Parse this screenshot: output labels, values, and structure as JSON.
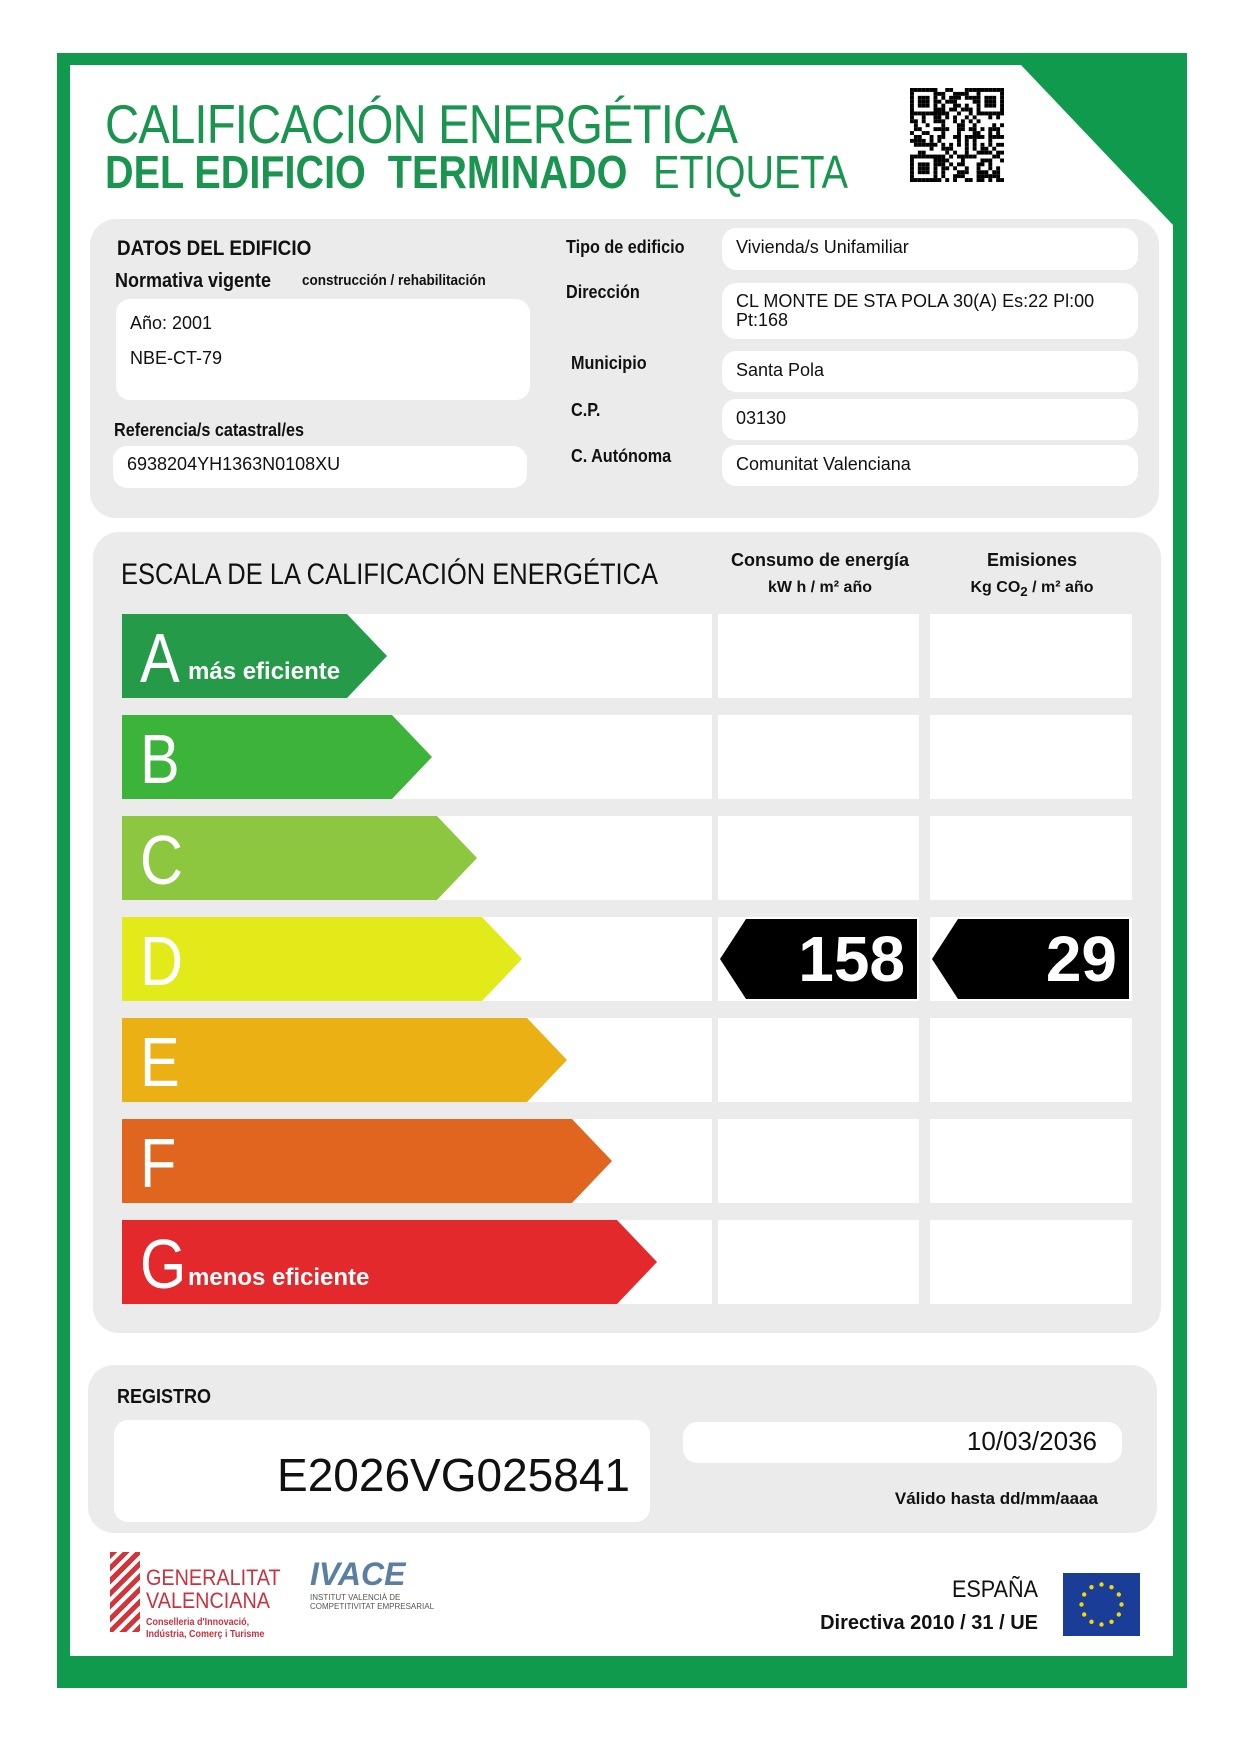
{
  "header": {
    "title_line1": "CALIFICACIÓN ENERGÉTICA",
    "title_line2_bold": "DEL EDIFICIO  TERMINADO",
    "title_line2_light": "ETIQUETA"
  },
  "building": {
    "section_title": "DATOS DEL EDIFICIO",
    "normativa_label": "Normativa vigente",
    "normativa_sub": "construcción / rehabilitación",
    "year": "Año: 2001",
    "norma": "NBE-CT-79",
    "catastral_label": "Referencia/s catastral/es",
    "catastral_value": "6938204YH1363N0108XU",
    "fields": [
      {
        "label": "Tipo de edificio",
        "value": "Vivienda/s Unifamiliar"
      },
      {
        "label": "Dirección",
        "value": "CL MONTE DE STA POLA 30(A) Es:22 Pl:00 Pt:168"
      },
      {
        "label": "Municipio",
        "value": "Santa Pola"
      },
      {
        "label": "C.P.",
        "value": "03130"
      },
      {
        "label": "C. Autónoma",
        "value": "Comunitat Valenciana"
      }
    ]
  },
  "scale": {
    "title": "ESCALA DE LA CALIFICACIÓN ENERGÉTICA",
    "energy_header": "Consumo de energía",
    "energy_unit": "kW h / m² año",
    "emission_header": "Emisiones",
    "emission_unit_a": "Kg CO",
    "emission_unit_sub": "2",
    "emission_unit_b": " / m² año",
    "grades": [
      {
        "letter": "A",
        "label": "más eficiente",
        "color": "#259a48"
      },
      {
        "letter": "B",
        "label": "",
        "color": "#3cb43a"
      },
      {
        "letter": "C",
        "label": "",
        "color": "#8dc73f"
      },
      {
        "letter": "D",
        "label": "",
        "color": "#e2ea1a"
      },
      {
        "letter": "E",
        "label": "",
        "color": "#ebb014"
      },
      {
        "letter": "F",
        "label": "",
        "color": "#e0661f"
      },
      {
        "letter": "G",
        "label": "menos eficiente",
        "color": "#e3292b"
      }
    ],
    "energy_rating": {
      "grade": "D",
      "value": "158"
    },
    "emission_rating": {
      "grade": "D",
      "value": "29"
    }
  },
  "registro": {
    "label": "REGISTRO",
    "number": "E2026VG025841",
    "valid_date": "10/03/2036",
    "valid_label": "Válido hasta dd/mm/aaaa"
  },
  "footer": {
    "gv_line1": "GENERALITAT",
    "gv_line2": "VALENCIANA",
    "gv_sub1": "Conselleria d'Innovació,",
    "gv_sub2": "Indústria, Comerç i Turisme",
    "ivace": "IVACE",
    "ivace_sub1": "INSTITUT VALENCIÀ DE",
    "ivace_sub2": "COMPETITIVITAT EMPRESARIAL",
    "country": "ESPAÑA",
    "directive": "Directiva 2010 / 31 / UE"
  },
  "colors": {
    "frame": "#0f9a4e",
    "title": "#1a9550",
    "panel": "#ebebeb"
  }
}
